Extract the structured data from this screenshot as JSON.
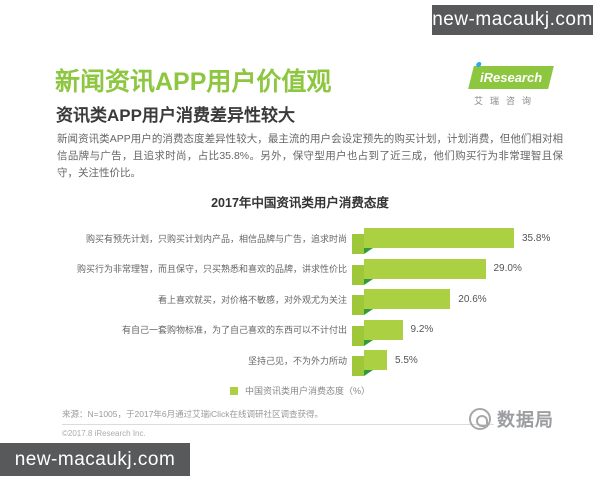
{
  "badges": {
    "top_right": "new-macaukj.com",
    "bottom_left": "new-macaukj.com"
  },
  "header": {
    "title": "新闻资讯APP用户价值观",
    "subtitle": "资讯类APP用户消费差异性较大",
    "paragraph": "新闻资讯类APP用户的消费态度差异性较大，最主流的用户会设定预先的购买计划，计划消费，但他们相对相信品牌与广告，且追求时尚，占比35.8%。另外，保守型用户也占到了近三成，他们购买行为非常理智且保守，关注性价比。",
    "logo": {
      "brand": "iResearch",
      "brand_cn": "艾瑞咨询"
    }
  },
  "chart_data": {
    "type": "bar",
    "orientation": "horizontal",
    "title": "2017年中国资讯类用户消费态度",
    "categories": [
      "购买有预先计划，只购买计划内产品，相信品牌与广告，追求时尚",
      "购买行为非常理智，而且保守，只买熟悉和喜欢的品牌，讲求性价比",
      "看上喜欢就买，对价格不敏感，对外观尤为关注",
      "有自己一套购物标准，为了自己喜欢的东西可以不计付出",
      "坚持己见，不为外力所动"
    ],
    "values": [
      35.8,
      29.0,
      20.6,
      9.2,
      5.5
    ],
    "unit": "%",
    "xlim": [
      0,
      40
    ],
    "grid": false,
    "legend": "中国资讯类用户消费态度（%）",
    "legend_position": "bottom",
    "bar_color": "#abd143",
    "fold_color": "#2f9b3a"
  },
  "footer": {
    "source": "来源：N=1005，于2017年6月通过艾瑞iClick在线调研社区调查获得。",
    "copyright": "©2017.8 iResearch Inc.",
    "watermark": "数据局"
  }
}
